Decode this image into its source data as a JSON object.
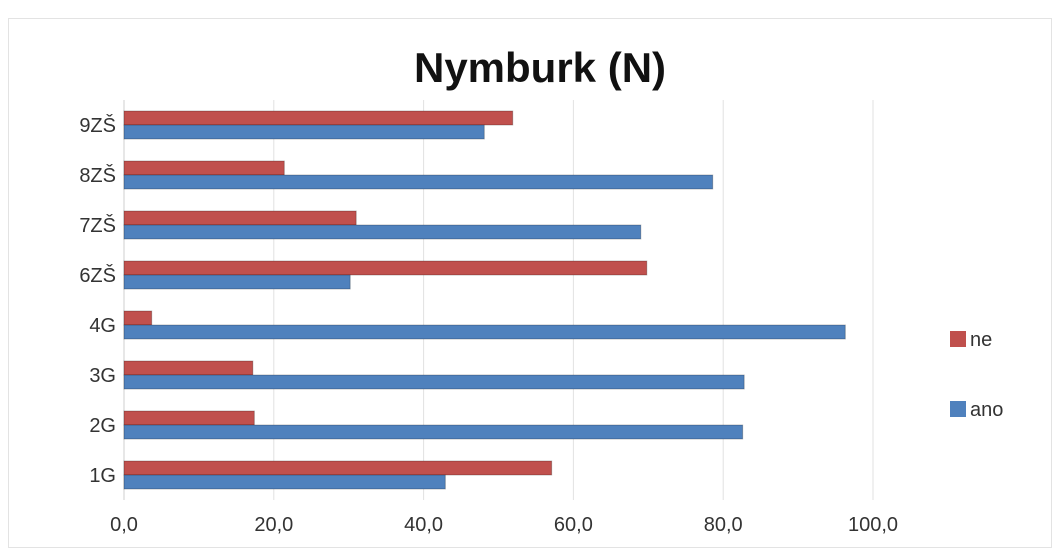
{
  "chart_data": {
    "type": "bar",
    "orientation": "horizontal",
    "title": "Nymburk (N)",
    "categories": [
      "1G",
      "2G",
      "3G",
      "4G",
      "6ZŠ",
      "7ZŠ",
      "8ZŠ",
      "9ZŠ"
    ],
    "series": [
      {
        "name": "ne",
        "color": "#c0504d",
        "values": [
          57.1,
          17.4,
          17.2,
          3.7,
          69.8,
          31.0,
          21.4,
          51.9
        ]
      },
      {
        "name": "ano",
        "color": "#4f81bd",
        "values": [
          42.9,
          82.6,
          82.8,
          96.3,
          30.2,
          69.0,
          78.6,
          48.1
        ]
      }
    ],
    "xlim": [
      0,
      100
    ],
    "xticks": [
      "0,0",
      "20,0",
      "40,0",
      "60,0",
      "80,0",
      "100,0"
    ],
    "grid": true,
    "legend_position": "right"
  }
}
